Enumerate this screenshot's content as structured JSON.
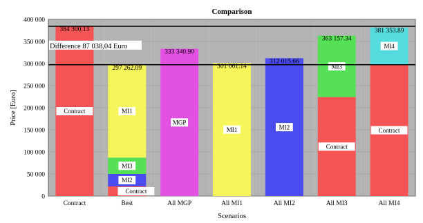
{
  "chart_data": {
    "type": "bar",
    "stacked": true,
    "title": "Comparison",
    "xlabel": "Scenarios",
    "ylabel": "Price [Euro]",
    "ylim": [
      0,
      400000
    ],
    "yticks": [
      0,
      50000,
      100000,
      150000,
      200000,
      250000,
      300000,
      350000,
      400000
    ],
    "ytick_labels": [
      "0",
      "50 000",
      "100 000",
      "150 000",
      "200 000",
      "250 000",
      "300 000",
      "350 000",
      "400 000"
    ],
    "grid": true,
    "categories": [
      "Contract",
      "Best",
      "All MGP",
      "All MI1",
      "All MI2",
      "All MI3",
      "All MI4"
    ],
    "totals": [
      "384 300.13",
      "297 262.09",
      "333 340.90",
      "301 061.14",
      "312 015.66",
      "363 157.34",
      "381 353.89"
    ],
    "bars": [
      {
        "segments": [
          {
            "label": "Contract",
            "value": 384300.13,
            "color": "#f65454",
            "label_pos": "mid"
          }
        ]
      },
      {
        "segments": [
          {
            "label": "Contract",
            "value": 22000,
            "color": "#f65454",
            "label_pos": "right"
          },
          {
            "label": "MI2",
            "value": 28000,
            "color": "#4b4bf2",
            "label_pos": "mid"
          },
          {
            "label": "MI3",
            "value": 37000,
            "color": "#55e055",
            "label_pos": "mid"
          },
          {
            "label": "MI1",
            "value": 210262.09,
            "color": "#f6f65a",
            "label_pos": "mid"
          }
        ]
      },
      {
        "segments": [
          {
            "label": "MGP",
            "value": 333340.9,
            "color": "#e351e3",
            "label_pos": "mid"
          }
        ]
      },
      {
        "segments": [
          {
            "label": "MI1",
            "value": 301061.14,
            "color": "#f6f65a",
            "label_pos": "mid"
          }
        ]
      },
      {
        "segments": [
          {
            "label": "MI2",
            "value": 312015.66,
            "color": "#4b4bf2",
            "label_pos": "mid"
          }
        ]
      },
      {
        "segments": [
          {
            "label": "Contract",
            "value": 224000,
            "color": "#f65454",
            "label_pos": "mid"
          },
          {
            "label": "MI3",
            "value": 139157.34,
            "color": "#55e055",
            "label_pos": "mid"
          }
        ]
      },
      {
        "segments": [
          {
            "label": "Contract",
            "value": 298000,
            "color": "#f65454",
            "label_pos": "mid"
          },
          {
            "label": "MI4",
            "value": 83353.89,
            "color": "#55dddd",
            "label_pos": "mid"
          }
        ]
      }
    ],
    "reference_lines": [
      384300.13,
      297262.09
    ],
    "annotation": "Difference 87 038,04 Euro",
    "plot_background": "#b4b4b4"
  }
}
